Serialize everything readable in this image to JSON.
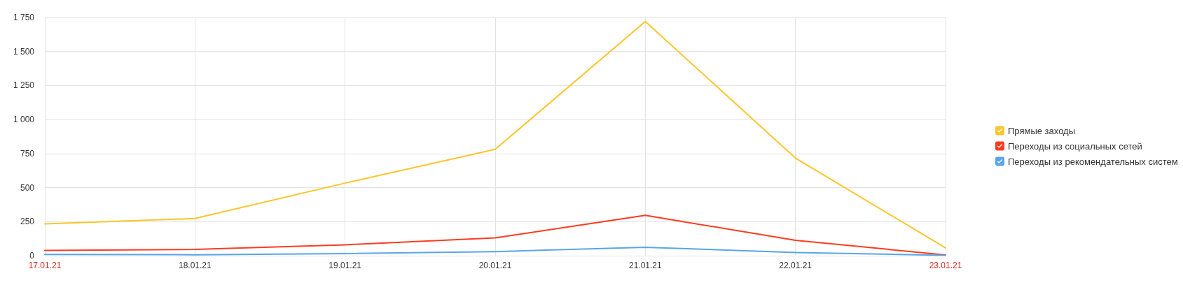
{
  "chart_data": {
    "type": "line",
    "categories": [
      "17.01.21",
      "18.01.21",
      "19.01.21",
      "20.01.21",
      "21.01.21",
      "22.01.21",
      "23.01.21"
    ],
    "series": [
      {
        "name": "Прямые заходы",
        "color": "#fcc52a",
        "values": [
          234,
          273,
          533,
          781,
          1720,
          717,
          57
        ]
      },
      {
        "name": "Переходы из социальных сетей",
        "color": "#ff3b1f",
        "values": [
          39,
          46,
          80,
          131,
          296,
          113,
          5
        ]
      },
      {
        "name": "Переходы из рекомендательных систем",
        "color": "#58a6e8",
        "values": [
          9,
          7,
          16,
          30,
          62,
          23,
          2
        ]
      }
    ],
    "ylim": [
      0,
      1750
    ],
    "yticks": [
      0,
      250,
      500,
      750,
      {
        "value": 1000,
        "label": "1 000"
      },
      {
        "value": 1250,
        "label": "1 250"
      },
      {
        "value": 1500,
        "label": "1 500"
      },
      {
        "value": 1750,
        "label": "1 750"
      }
    ],
    "grid": true,
    "legend": "right",
    "marker": "none",
    "line_style": "solid"
  }
}
